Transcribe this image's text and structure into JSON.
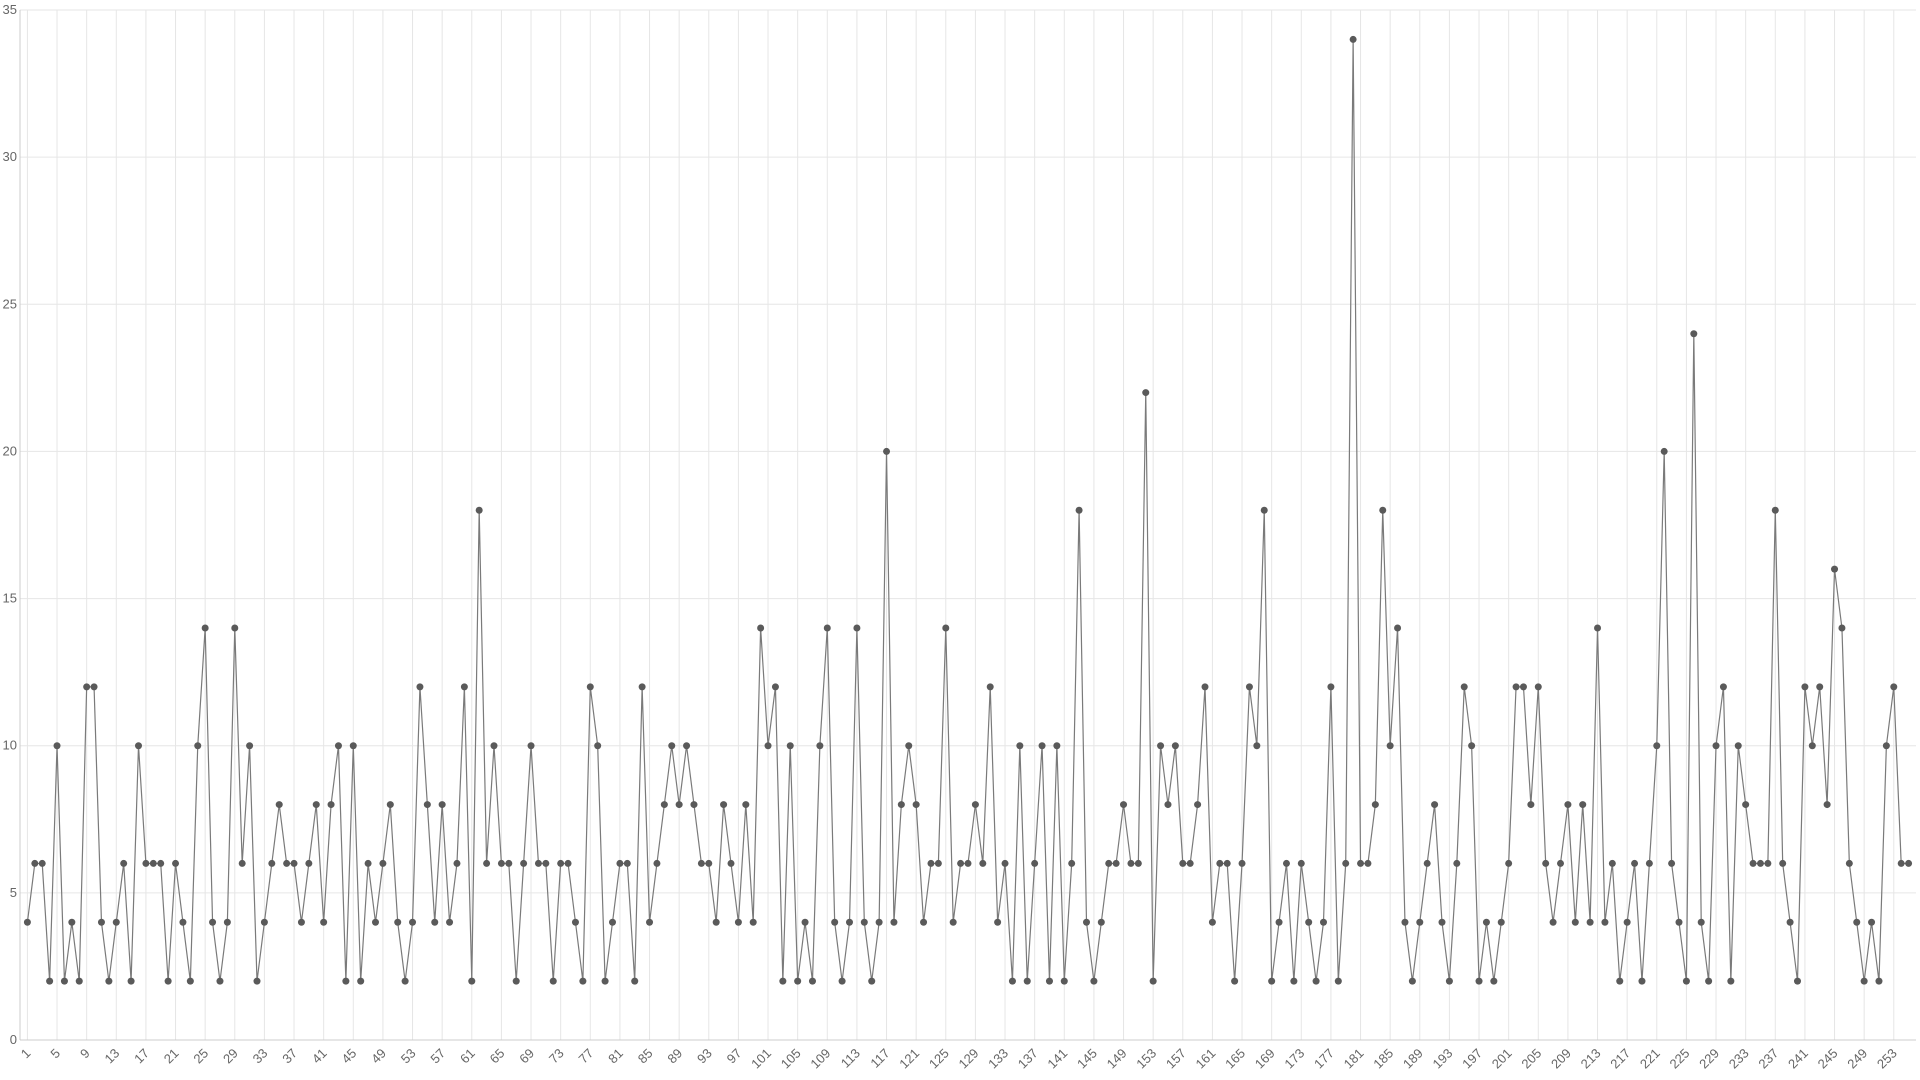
{
  "chart_data": {
    "type": "line",
    "color": "#7a7a7a",
    "marker_color": "#5a5a5a",
    "grid": true,
    "x": [
      1,
      2,
      3,
      4,
      5,
      6,
      7,
      8,
      9,
      10,
      11,
      12,
      13,
      14,
      15,
      16,
      17,
      18,
      19,
      20,
      21,
      22,
      23,
      24,
      25,
      26,
      27,
      28,
      29,
      30,
      31,
      32,
      33,
      34,
      35,
      36,
      37,
      38,
      39,
      40,
      41,
      42,
      43,
      44,
      45,
      46,
      47,
      48,
      49,
      50,
      51,
      52,
      53,
      54,
      55,
      56,
      57,
      58,
      59,
      60,
      61,
      62,
      63,
      64,
      65,
      66,
      67,
      68,
      69,
      70,
      71,
      72,
      73,
      74,
      75,
      76,
      77,
      78,
      79,
      80,
      81,
      82,
      83,
      84,
      85,
      86,
      87,
      88,
      89,
      90,
      91,
      92,
      93,
      94,
      95,
      96,
      97,
      98,
      99,
      100,
      101,
      102,
      103,
      104,
      105,
      106,
      107,
      108,
      109,
      110,
      111,
      112,
      113,
      114,
      115,
      116,
      117,
      118,
      119,
      120,
      121,
      122,
      123,
      124,
      125,
      126,
      127,
      128,
      129,
      130,
      131,
      132,
      133,
      134,
      135,
      136,
      137,
      138,
      139,
      140,
      141,
      142,
      143,
      144,
      145,
      146,
      147,
      148,
      149,
      150,
      151,
      152,
      153,
      154,
      155,
      156,
      157,
      158,
      159,
      160,
      161,
      162,
      163,
      164,
      165,
      166,
      167,
      168,
      169,
      170,
      171,
      172,
      173,
      174,
      175,
      176,
      177,
      178,
      179,
      180,
      181,
      182,
      183,
      184,
      185,
      186,
      187,
      188,
      189,
      190,
      191,
      192,
      193,
      194,
      195,
      196,
      197,
      198,
      199,
      200,
      201,
      202,
      203,
      204,
      205,
      206,
      207,
      208,
      209,
      210,
      211,
      212,
      213,
      214,
      215,
      216,
      217,
      218,
      219,
      220,
      221,
      222,
      223,
      224,
      225,
      226,
      227,
      228,
      229,
      230,
      231,
      232,
      233,
      234,
      235,
      236,
      237,
      238,
      239,
      240,
      241,
      242,
      243,
      244,
      245,
      246,
      247,
      248,
      249,
      250,
      251,
      252,
      253,
      254,
      255
    ],
    "values": [
      4,
      6,
      6,
      2,
      10,
      2,
      4,
      2,
      12,
      12,
      4,
      2,
      4,
      6,
      2,
      10,
      6,
      6,
      6,
      2,
      6,
      4,
      2,
      10,
      14,
      4,
      2,
      4,
      14,
      6,
      10,
      2,
      4,
      6,
      8,
      6,
      6,
      4,
      6,
      8,
      4,
      8,
      10,
      2,
      10,
      2,
      6,
      4,
      6,
      8,
      4,
      2,
      4,
      12,
      8,
      4,
      8,
      4,
      6,
      12,
      2,
      18,
      6,
      10,
      6,
      6,
      2,
      6,
      10,
      6,
      6,
      2,
      6,
      6,
      4,
      2,
      12,
      10,
      2,
      4,
      6,
      6,
      2,
      12,
      4,
      6,
      8,
      10,
      8,
      10,
      8,
      6,
      6,
      4,
      8,
      6,
      4,
      8,
      4,
      14,
      10,
      12,
      2,
      10,
      2,
      4,
      2,
      10,
      14,
      4,
      2,
      4,
      14,
      4,
      2,
      4,
      20,
      4,
      8,
      10,
      8,
      4,
      6,
      6,
      14,
      4,
      6,
      6,
      8,
      6,
      12,
      4,
      6,
      2,
      10,
      2,
      6,
      10,
      2,
      10,
      2,
      6,
      18,
      4,
      2,
      4,
      6,
      6,
      8,
      6,
      6,
      22,
      2,
      10,
      8,
      10,
      6,
      6,
      8,
      12,
      4,
      6,
      6,
      2,
      6,
      12,
      10,
      18,
      2,
      4,
      6,
      2,
      6,
      4,
      2,
      4,
      12,
      2,
      6,
      34,
      6,
      6,
      8,
      18,
      10,
      14,
      4,
      2,
      4,
      6,
      8,
      4,
      2,
      6,
      12,
      10,
      2,
      4,
      2,
      4,
      6,
      12,
      12,
      8,
      12,
      6,
      4,
      6,
      8,
      4,
      8,
      4,
      14,
      4,
      6,
      2,
      4,
      6,
      2,
      6,
      10,
      20,
      6,
      4,
      2,
      24,
      4,
      2,
      10,
      12,
      2,
      10,
      8,
      6,
      6,
      6,
      18,
      6,
      4,
      2,
      12,
      10,
      12,
      8,
      16,
      14,
      6,
      4,
      2,
      4,
      2,
      10,
      12,
      6,
      6
    ],
    "xlim": [
      0,
      256
    ],
    "xticks": [
      1,
      5,
      9,
      13,
      17,
      21,
      25,
      29,
      33,
      37,
      41,
      45,
      49,
      53,
      57,
      61,
      65,
      69,
      73,
      77,
      81,
      85,
      89,
      93,
      97,
      101,
      105,
      109,
      113,
      117,
      121,
      125,
      129,
      133,
      137,
      141,
      145,
      149,
      153,
      157,
      161,
      165,
      169,
      173,
      177,
      181,
      185,
      189,
      193,
      197,
      201,
      205,
      209,
      213,
      217,
      221,
      225,
      229,
      233,
      237,
      241,
      245,
      249,
      253
    ],
    "ylim": [
      0,
      35
    ],
    "yticks": [
      0,
      5,
      10,
      15,
      20,
      25,
      30,
      35
    ]
  }
}
